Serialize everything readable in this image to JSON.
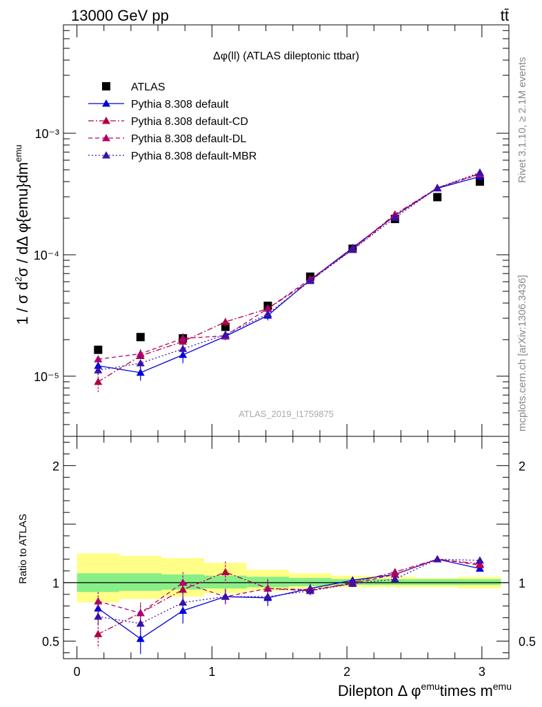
{
  "header": {
    "energy_label": "13000 GeV pp",
    "process_label": "tt̄"
  },
  "side_labels": {
    "rivet": "Rivet 3.1.10, ≥ 2.1M events",
    "mcplots": "mcplots.cern.ch [arXiv:1306.3436]"
  },
  "chart_data": [
    {
      "type": "line",
      "title": "Δφ(ll) (ATLAS dileptonic ttbar)",
      "watermark": "ATLAS_2019_I1759875",
      "ylabel": "1 / σ  d²σ / dΔ φ{emu}dm^emu",
      "yscale": "log",
      "xlim": [
        -0.1,
        3.2
      ],
      "ylim": [
        3.2e-06,
        0.0078
      ],
      "y_ticks": [
        {
          "value": 1e-05,
          "label": "10⁻⁵"
        },
        {
          "value": 0.0001,
          "label": "10⁻⁴"
        },
        {
          "value": 0.001,
          "label": "10⁻³"
        }
      ],
      "legend_position": "top-left",
      "x": [
        0.157,
        0.471,
        0.785,
        1.1,
        1.414,
        1.728,
        2.042,
        2.356,
        2.67,
        2.985
      ],
      "series": [
        {
          "name": "ATLAS",
          "color": "#000000",
          "marker": "square",
          "dash": "none",
          "values": [
            1.65e-05,
            2.1e-05,
            2.05e-05,
            2.55e-05,
            3.8e-05,
            6.6e-05,
            0.000112,
            0.000197,
            0.000298,
            0.0004
          ]
        },
        {
          "name": "Pythia 8.308 default",
          "color": "#0000dd",
          "marker": "triangle",
          "dash": "none",
          "values": [
            1.22e-05,
            1.07e-05,
            1.5e-05,
            2.13e-05,
            3.16e-05,
            6.2e-05,
            0.000114,
            0.00021,
            0.000352,
            0.00044
          ],
          "errors": [
            9e-07,
            1.5e-06,
            2.2e-06,
            1.3e-06,
            2.8e-06,
            2.5e-06,
            2.5e-06,
            4e-06,
            6e-06,
            7e-06
          ]
        },
        {
          "name": "Pythia 8.308 default-CD",
          "color": "#b00044",
          "marker": "triangle",
          "dash": "8,3,2,3",
          "values": [
            9e-06,
            1.47e-05,
            1.93e-05,
            2.8e-05,
            3.6e-05,
            6.1e-05,
            0.000112,
            0.000215,
            0.000355,
            0.000465
          ],
          "errors": [
            1.6e-06,
            1.8e-06,
            1.4e-06,
            2.2e-06,
            3e-06,
            2e-06,
            2.6e-06,
            4e-06,
            6e-06,
            8e-06
          ]
        },
        {
          "name": "Pythia 8.308 default-DL",
          "color": "#b0006a",
          "marker": "triangle",
          "dash": "6,4",
          "values": [
            1.38e-05,
            1.53e-05,
            2.05e-05,
            2.15e-05,
            3.6e-05,
            6.3e-05,
            0.00011,
            0.00021,
            0.000355,
            0.00046
          ],
          "errors": [
            9e-07,
            1.4e-06,
            2.1e-06,
            1.7e-06,
            2.6e-06,
            2.4e-06,
            2.4e-06,
            4e-06,
            6e-06,
            8e-06
          ]
        },
        {
          "name": "Pythia 8.308 default-MBR",
          "color": "#3a10aa",
          "marker": "triangle",
          "dash": "2,3",
          "values": [
            1.12e-05,
            1.28e-05,
            1.68e-05,
            2.2e-05,
            3.26e-05,
            6.1e-05,
            0.00011,
            0.000202,
            0.000355,
            0.000475
          ],
          "errors": [
            1e-06,
            1.6e-06,
            1.6e-06,
            1.5e-06,
            2.4e-06,
            2.2e-06,
            2.2e-06,
            4e-06,
            6e-06,
            8e-06
          ]
        }
      ]
    },
    {
      "type": "line",
      "ylabel": "Ratio to ATLAS",
      "xlabel": "Dilepton Δ φ^emu times m^emu",
      "xlim": [
        -0.1,
        3.2
      ],
      "ylim": [
        0.35,
        2.25
      ],
      "x_ticks": [
        0,
        1,
        2,
        3
      ],
      "y_ticks": [
        {
          "value": 0.5,
          "label": "0.5"
        },
        {
          "value": 1,
          "label": "1"
        },
        {
          "value": 2,
          "label": "2"
        }
      ],
      "reference_line": 1,
      "uncertainty_bands": {
        "edges": [
          0.0,
          0.314,
          0.628,
          0.942,
          1.257,
          1.571,
          1.885,
          2.199,
          2.513,
          2.827,
          3.141
        ],
        "outer": [
          [
            0.83,
            1.25
          ],
          [
            0.86,
            1.23
          ],
          [
            0.88,
            1.21
          ],
          [
            0.91,
            1.17
          ],
          [
            0.93,
            1.11
          ],
          [
            0.95,
            1.08
          ],
          [
            0.96,
            1.06
          ],
          [
            0.96,
            1.05
          ],
          [
            0.96,
            1.04
          ],
          [
            0.95,
            1.05
          ]
        ],
        "inner": [
          [
            0.92,
            1.08
          ],
          [
            0.93,
            1.08
          ],
          [
            0.94,
            1.07
          ],
          [
            0.95,
            1.06
          ],
          [
            0.96,
            1.05
          ],
          [
            0.97,
            1.04
          ],
          [
            0.98,
            1.03
          ],
          [
            0.98,
            1.03
          ],
          [
            0.98,
            1.03
          ],
          [
            0.98,
            1.03
          ]
        ],
        "outer_color": "#ffff88",
        "inner_color": "#88ee88"
      },
      "x": [
        0.157,
        0.471,
        0.785,
        1.1,
        1.414,
        1.728,
        2.042,
        2.356,
        2.67,
        2.985
      ],
      "series": [
        {
          "name": "Pythia 8.308 default",
          "color": "#0000dd",
          "dash": "none",
          "values": [
            0.78,
            0.52,
            0.76,
            0.88,
            0.87,
            0.95,
            1.02,
            1.07,
            1.2,
            1.12
          ],
          "errors": [
            0.06,
            0.13,
            0.11,
            0.06,
            0.07,
            0.04,
            0.02,
            0.02,
            0.02,
            0.02
          ]
        },
        {
          "name": "Pythia 8.308 default-CD",
          "color": "#b00044",
          "dash": "8,3,2,3",
          "values": [
            0.56,
            0.74,
            0.94,
            1.09,
            0.95,
            0.93,
            1.0,
            1.09,
            1.2,
            1.16
          ],
          "errors": [
            0.12,
            0.09,
            0.07,
            0.09,
            0.08,
            0.04,
            0.03,
            0.02,
            0.02,
            0.02
          ]
        },
        {
          "name": "Pythia 8.308 default-DL",
          "color": "#b0006a",
          "dash": "6,4",
          "values": [
            0.84,
            0.74,
            1.0,
            0.88,
            0.95,
            0.94,
            0.99,
            1.07,
            1.2,
            1.15
          ],
          "errors": [
            0.08,
            0.07,
            0.09,
            0.07,
            0.07,
            0.04,
            0.03,
            0.02,
            0.02,
            0.02
          ]
        },
        {
          "name": "Pythia 8.308 default-MBR",
          "color": "#3a10aa",
          "dash": "2,3",
          "values": [
            0.71,
            0.65,
            0.83,
            0.88,
            0.88,
            0.93,
            0.99,
            1.03,
            1.2,
            1.19
          ],
          "errors": [
            0.07,
            0.08,
            0.08,
            0.06,
            0.06,
            0.04,
            0.02,
            0.02,
            0.02,
            0.02
          ]
        }
      ]
    }
  ]
}
